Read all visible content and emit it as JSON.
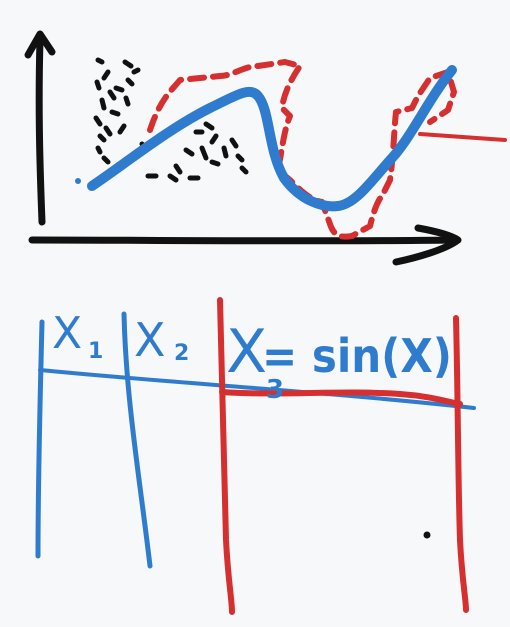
{
  "colors": {
    "background": "#f7f8f9",
    "axis": "#111111",
    "blue": "#2f7ccf",
    "red": "#d62f2f",
    "black_scatter": "#111111"
  },
  "table": {
    "headers": {
      "x1": "X",
      "x1_sub": "1",
      "x2": "X",
      "x2_sub": "2",
      "x3": "X",
      "x3_sub": "3",
      "x3_rest": "= sin(X)"
    }
  }
}
